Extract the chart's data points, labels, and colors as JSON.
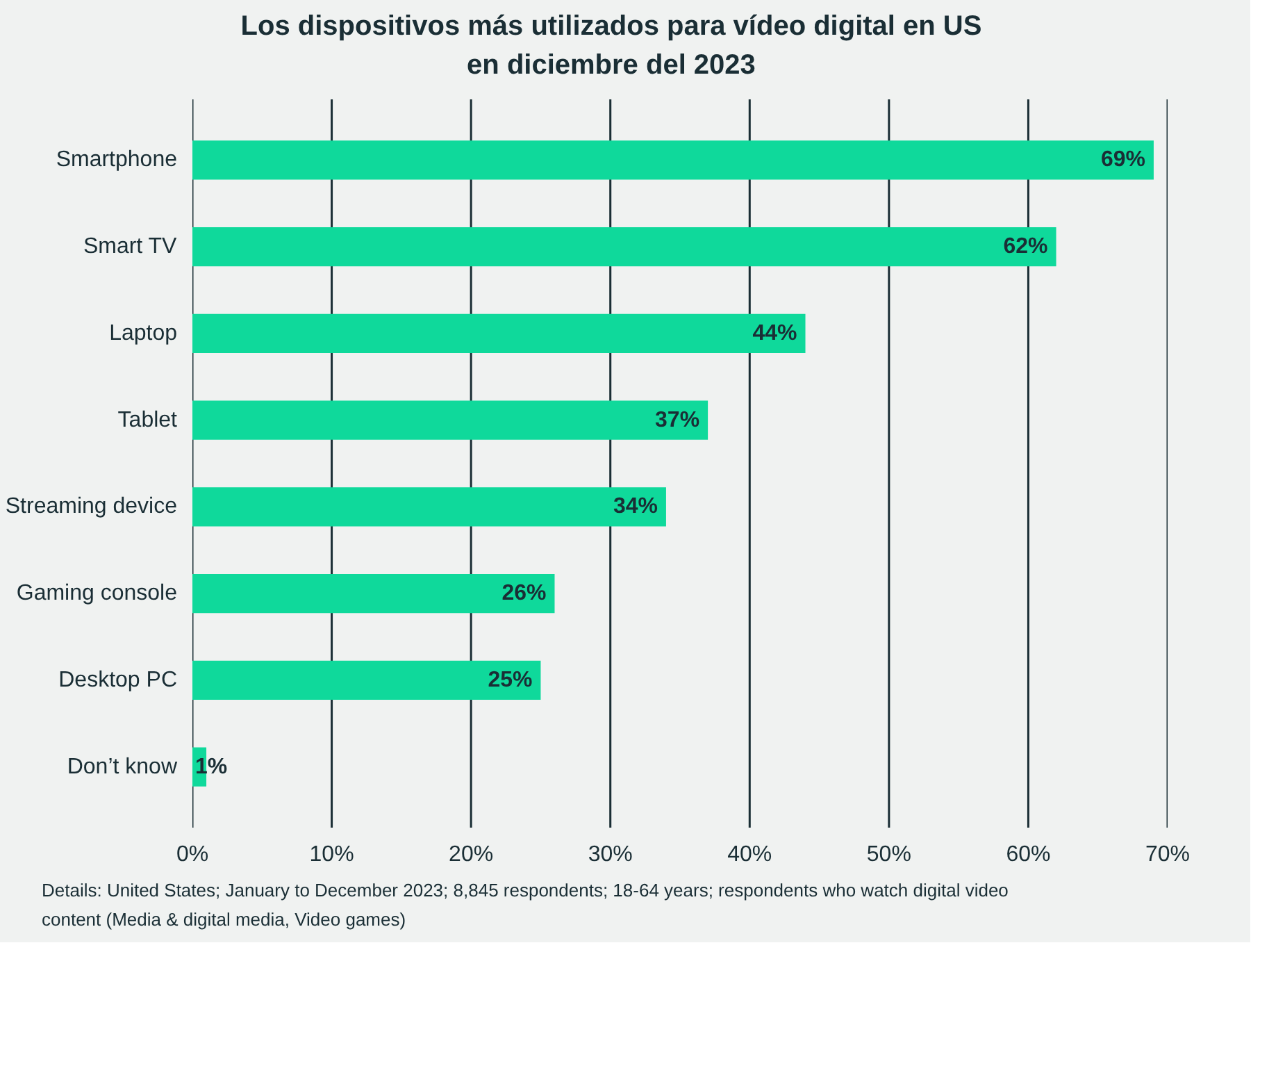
{
  "chart_data": {
    "type": "bar",
    "orientation": "horizontal",
    "title": "Los dispositivos más utilizados para vídeo digital en US en diciembre del 2023",
    "categories": [
      "Smartphone",
      "Smart TV",
      "Laptop",
      "Tablet",
      "Streaming device",
      "Gaming console",
      "Desktop PC",
      "Don’t know"
    ],
    "values": [
      69,
      62,
      44,
      37,
      34,
      26,
      25,
      1
    ],
    "value_labels": [
      "69%",
      "62%",
      "44%",
      "37%",
      "34%",
      "26%",
      "25%",
      "1%"
    ],
    "color": "#0fd99b",
    "xlim": [
      0,
      70
    ],
    "xticks": [
      {
        "value": 0,
        "label": "0%"
      },
      {
        "value": 10,
        "label": "10%"
      },
      {
        "value": 20,
        "label": "20%"
      },
      {
        "value": 30,
        "label": "30%"
      },
      {
        "value": 40,
        "label": "40%"
      },
      {
        "value": 50,
        "label": "50%"
      },
      {
        "value": 60,
        "label": "60%"
      },
      {
        "value": 70,
        "label": "70%"
      }
    ],
    "grid": "x",
    "annotations": [
      "Details: United States; January to December 2023; 8,845 respondents; 18-64 years; respondents who watch digital video content (Media & digital media, Video games)"
    ]
  }
}
